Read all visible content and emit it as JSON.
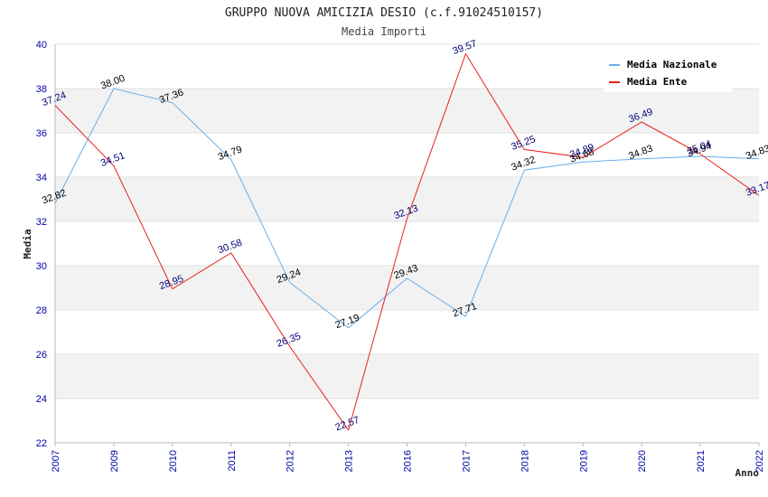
{
  "chart_data": {
    "type": "line",
    "title": "GRUPPO NUOVA AMICIZIA DESIO (c.f.91024510157)",
    "subtitle": "Media Importi",
    "xlabel": "Anno",
    "ylabel": "Media",
    "ylim": [
      22,
      40
    ],
    "yticks": [
      "22",
      "24",
      "26",
      "28",
      "30",
      "32",
      "34",
      "36",
      "38",
      "40"
    ],
    "categories": [
      "2007",
      "2009",
      "2010",
      "2011",
      "2012",
      "2013",
      "2016",
      "2017",
      "2018",
      "2019",
      "2020",
      "2021",
      "2022"
    ],
    "grid": true,
    "legend_position": "top-right",
    "series": [
      {
        "name": "Media Nazionale",
        "color": "#6aaee8",
        "values": [
          32.82,
          38.0,
          37.36,
          34.79,
          29.24,
          27.19,
          29.43,
          27.71,
          34.32,
          34.68,
          34.83,
          34.94,
          34.83
        ],
        "labels": [
          "32.82",
          "38.00",
          "37.36",
          "34.79",
          "29.24",
          "27.19",
          "29.43",
          "27.71",
          "34.32",
          "34.68",
          "34.83",
          "34.94",
          "34.83"
        ]
      },
      {
        "name": "Media Ente",
        "color": "#e82020",
        "values": [
          37.24,
          34.51,
          28.95,
          30.58,
          26.35,
          22.57,
          32.13,
          39.57,
          35.25,
          34.89,
          36.49,
          35.04,
          33.17
        ],
        "labels": [
          "37.24",
          "34.51",
          "28.95",
          "30.58",
          "26.35",
          "22.57",
          "32.13",
          "39.57",
          "35.25",
          "34.89",
          "36.49",
          "35.04",
          "33.17"
        ]
      }
    ]
  }
}
